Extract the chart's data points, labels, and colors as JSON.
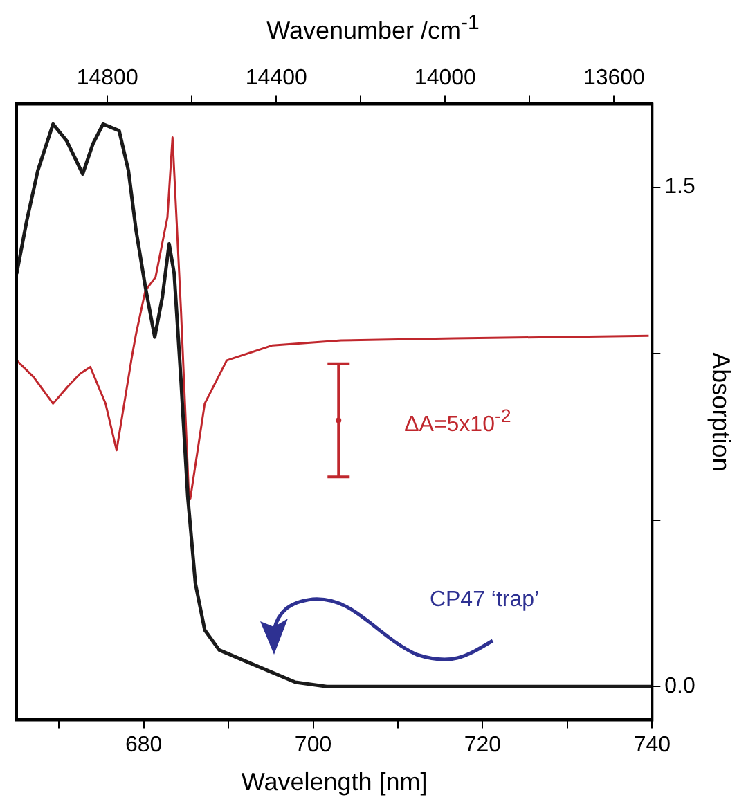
{
  "chart_data": {
    "type": "line",
    "xlabel": "Wavelength [nm]",
    "x2label": "Wavenumber /cm$^{-1}$",
    "ylabel": "Absorption",
    "xlim": [
      665,
      740
    ],
    "xticks": [
      {
        "value": 670,
        "label": null
      },
      680,
      {
        "value": 690,
        "label": null
      },
      700,
      {
        "value": 710,
        "label": null
      },
      720,
      {
        "value": 730,
        "label": null
      },
      740
    ],
    "x2lim": [
      15015,
      13510
    ],
    "x2ticks": [
      14800,
      {
        "value": 14600,
        "label": null
      },
      14400,
      {
        "value": 14200,
        "label": null
      },
      14000,
      {
        "value": 13800,
        "label": null
      },
      13600
    ],
    "ylim": [
      -0.1,
      1.75
    ],
    "yticks": [
      {
        "value": 0,
        "label": "0.0"
      },
      {
        "value": 0.5,
        "label": null
      },
      {
        "value": 1,
        "label": null
      },
      1.5
    ],
    "grid": false,
    "legend": false,
    "marker": "none",
    "line_style": "solid",
    "series": [
      {
        "color": "#1a1a1a",
        "x": [
          665,
          666.2,
          667.5,
          669.3,
          670.9,
          672.8,
          674,
          675.2,
          677.1,
          678.2,
          679.1,
          680.2,
          681.3,
          682.2,
          683,
          683.6,
          684.4,
          685.2,
          686.1,
          687.2,
          688.9,
          692.6,
          697.9,
          701.6,
          740
        ],
        "values": [
          1.24,
          1.4,
          1.55,
          1.69,
          1.64,
          1.54,
          1.63,
          1.69,
          1.67,
          1.55,
          1.37,
          1.2,
          1.05,
          1.17,
          1.33,
          1.24,
          0.92,
          0.57,
          0.31,
          0.17,
          0.11,
          0.07,
          0.013,
          0,
          0
        ]
      },
      {
        "color": "#c0272d",
        "x": [
          665,
          667,
          669.3,
          671,
          672.5,
          673.7,
          675.5,
          676.8,
          677.7,
          678.6,
          679.1,
          680.2,
          681.4,
          682.8,
          683.4,
          684.4,
          685.3,
          685.5,
          687.2,
          689.8,
          695.2,
          703.3,
          716.6,
          739.6
        ],
        "values": [
          0.98,
          0.93,
          0.85,
          0.9,
          0.94,
          0.96,
          0.85,
          0.71,
          0.85,
          0.99,
          1.06,
          1.19,
          1.23,
          1.41,
          1.65,
          1.13,
          0.59,
          0.565,
          0.85,
          0.98,
          1.025,
          1.04,
          1.046,
          1.054
        ]
      },
      {
        "type": "scatter",
        "marker": "circle",
        "color": "#c0272d",
        "x": [
          703
        ],
        "values": [
          0.8
        ],
        "errors": [
          0.17
        ]
      }
    ],
    "annotations": [
      "ΔA=5x10$^{-2}$",
      "CP47 ‘trap’"
    ]
  }
}
